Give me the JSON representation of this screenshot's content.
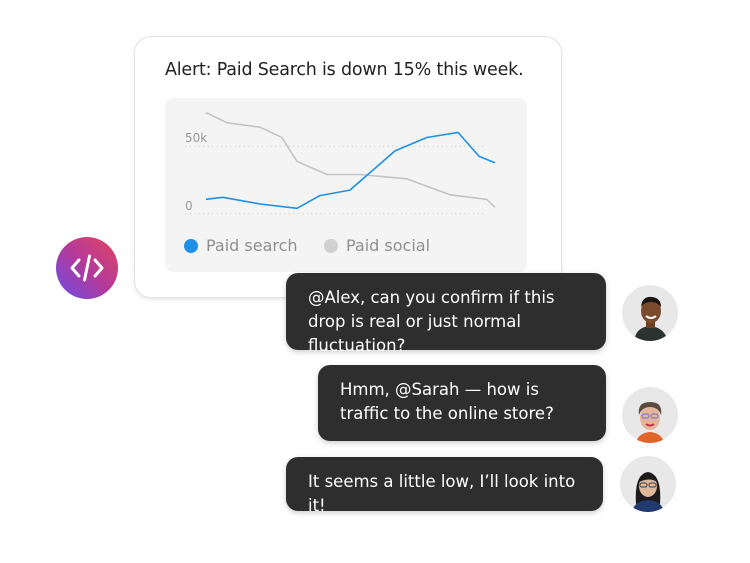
{
  "alert_card": {
    "title": "Alert: Paid Search is down 15% this week."
  },
  "chart_data": {
    "type": "line",
    "title": "",
    "xlabel": "",
    "ylabel": "",
    "y_ticks": [
      "50k",
      "0"
    ],
    "y_tick_values": [
      50000,
      0
    ],
    "ylim": [
      0,
      80000
    ],
    "xlim": [
      0,
      10
    ],
    "grid": "dotted horizontal at ticks",
    "legend_position": "bottom",
    "series": [
      {
        "name": "Paid search",
        "color": "#1e90e6",
        "x": [
          0,
          0.58,
          1.87,
          3.15,
          3.94,
          4.98,
          6.54,
          7.64,
          8.72,
          9.45,
          10
        ],
        "values": [
          10700,
          12200,
          7200,
          4000,
          13400,
          17500,
          46600,
          56500,
          60300,
          42500,
          37800
        ]
      },
      {
        "name": "Paid social",
        "color": "#c4c4c4",
        "x": [
          0,
          0.72,
          1.87,
          2.62,
          3.15,
          4.19,
          5.33,
          6.94,
          8.44,
          9.71,
          10
        ],
        "values": [
          75000,
          67500,
          64200,
          56700,
          38800,
          29100,
          29100,
          25900,
          14000,
          10700,
          4800
        ]
      }
    ]
  },
  "app_icon": {
    "icon": "code-icon",
    "gradient": [
      "#6a4ee6",
      "#e2455e"
    ]
  },
  "messages": [
    {
      "text": "@Alex, can you confirm if this drop is real or just normal fluctuation?",
      "avatar": "man-smiling"
    },
    {
      "text": "Hmm, @Sarah — how is traffic to the online store?",
      "avatar": "woman-glasses-short-hair"
    },
    {
      "text": "It seems a little low, I’ll look into it!",
      "avatar": "woman-glasses-long-hair"
    }
  ]
}
